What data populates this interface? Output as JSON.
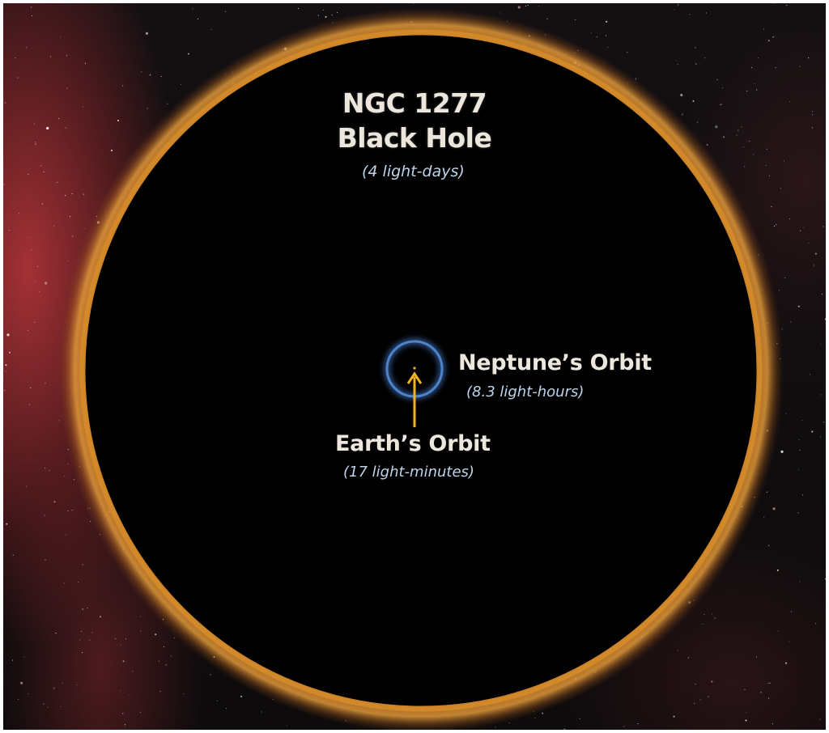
{
  "black_hole": {
    "title_line1": "NGC 1277",
    "title_line2": "Black Hole",
    "size": "(4 light-days)",
    "ring_color": "#d48a2a"
  },
  "neptune": {
    "name": "Neptune’s Orbit",
    "size": "(8.3 light-hours)",
    "ring_color": "#3f6fb8"
  },
  "earth": {
    "name": "Earth’s Orbit",
    "size": "(17 light-minutes)",
    "arrow_color": "#f2b21c"
  },
  "colors": {
    "text": "#ece6dc",
    "subtext": "#bed4ea",
    "background": "#0c0a0b"
  }
}
